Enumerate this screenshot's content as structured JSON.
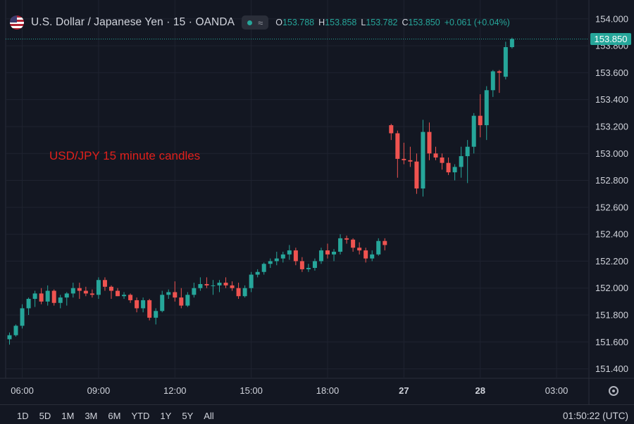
{
  "header": {
    "symbol_title": "U.S. Dollar / Japanese Yen · 15 · OANDA",
    "ohlc": [
      {
        "label": "O",
        "value": "153.788"
      },
      {
        "label": "H",
        "value": "153.858"
      },
      {
        "label": "L",
        "value": "153.782"
      },
      {
        "label": "C",
        "value": "153.850"
      }
    ],
    "change": "+0.061 (+0.04%)",
    "flag_icon": "us-jp-flag-icon",
    "status_icon": "market-open-dot-icon",
    "wave_icon": "wave-icon"
  },
  "annotation": "USD/JPY 15 minute candles",
  "price_badge": "153.850",
  "bottom": {
    "ranges": [
      "1D",
      "5D",
      "1M",
      "3M",
      "6M",
      "YTD",
      "1Y",
      "5Y",
      "All"
    ],
    "clock": "01:50:22 (UTC)"
  },
  "colors": {
    "up": "#26a69a",
    "down": "#ef5350",
    "background": "#131722",
    "annotation": "#e0201b"
  },
  "chart_data": {
    "type": "candlestick",
    "y_ticks": [
      "154.000",
      "153.800",
      "153.600",
      "153.400",
      "153.200",
      "153.000",
      "152.800",
      "152.600",
      "152.400",
      "152.200",
      "152.000",
      "151.800",
      "151.600",
      "151.400"
    ],
    "y_range": [
      151.33,
      154.14
    ],
    "x_ticks": [
      {
        "label": "06:00",
        "i": 2
      },
      {
        "label": "09:00",
        "i": 14
      },
      {
        "label": "12:00",
        "i": 26
      },
      {
        "label": "15:00",
        "i": 38
      },
      {
        "label": "18:00",
        "i": 50
      },
      {
        "label": "27",
        "i": 62
      },
      {
        "label": "28",
        "i": 74
      },
      {
        "label": "03:00",
        "i": 86
      }
    ],
    "last_price": 153.85,
    "candles": [
      [
        151.62,
        151.67,
        151.58,
        151.65
      ],
      [
        151.65,
        151.73,
        151.64,
        151.72
      ],
      [
        151.72,
        151.88,
        151.7,
        151.85
      ],
      [
        151.85,
        151.93,
        151.8,
        151.92
      ],
      [
        151.92,
        151.98,
        151.86,
        151.96
      ],
      [
        151.96,
        152.0,
        151.88,
        151.9
      ],
      [
        151.9,
        152.02,
        151.87,
        151.98
      ],
      [
        151.98,
        151.99,
        151.87,
        151.89
      ],
      [
        151.89,
        151.95,
        151.85,
        151.93
      ],
      [
        151.93,
        151.97,
        151.87,
        151.96
      ],
      [
        151.96,
        152.04,
        151.93,
        152.0
      ],
      [
        152.0,
        152.04,
        151.92,
        151.98
      ],
      [
        151.98,
        152.01,
        151.94,
        151.96
      ],
      [
        151.96,
        151.99,
        151.93,
        151.95
      ],
      [
        151.95,
        152.08,
        151.92,
        152.06
      ],
      [
        152.06,
        152.08,
        151.98,
        152.01
      ],
      [
        152.01,
        152.02,
        151.92,
        151.98
      ],
      [
        151.98,
        152.0,
        151.94,
        151.94
      ],
      [
        151.94,
        151.97,
        151.92,
        151.95
      ],
      [
        151.95,
        151.96,
        151.89,
        151.91
      ],
      [
        151.91,
        151.93,
        151.82,
        151.85
      ],
      [
        151.85,
        151.93,
        151.82,
        151.91
      ],
      [
        151.91,
        151.92,
        151.76,
        151.78
      ],
      [
        151.78,
        151.85,
        151.73,
        151.83
      ],
      [
        151.83,
        151.98,
        151.82,
        151.95
      ],
      [
        151.95,
        151.99,
        151.92,
        151.97
      ],
      [
        151.97,
        152.05,
        151.9,
        151.93
      ],
      [
        151.93,
        152.0,
        151.85,
        151.87
      ],
      [
        151.87,
        151.97,
        151.86,
        151.95
      ],
      [
        151.95,
        152.04,
        151.93,
        152.0
      ],
      [
        152.0,
        152.08,
        151.98,
        152.03
      ],
      [
        152.03,
        152.08,
        152.0,
        152.02
      ],
      [
        152.02,
        152.06,
        151.95,
        152.02
      ],
      [
        152.02,
        152.06,
        151.97,
        152.04
      ],
      [
        152.04,
        152.08,
        152.0,
        152.02
      ],
      [
        152.02,
        152.05,
        151.98,
        152.0
      ],
      [
        152.0,
        152.04,
        151.92,
        151.94
      ],
      [
        151.94,
        152.02,
        151.93,
        152.0
      ],
      [
        152.0,
        152.12,
        151.97,
        152.1
      ],
      [
        152.1,
        152.14,
        152.08,
        152.12
      ],
      [
        152.12,
        152.19,
        152.1,
        152.18
      ],
      [
        152.18,
        152.22,
        152.15,
        152.2
      ],
      [
        152.2,
        152.27,
        152.17,
        152.22
      ],
      [
        152.22,
        152.27,
        152.19,
        152.25
      ],
      [
        152.25,
        152.32,
        152.21,
        152.28
      ],
      [
        152.28,
        152.3,
        152.17,
        152.2
      ],
      [
        152.2,
        152.23,
        152.12,
        152.14
      ],
      [
        152.14,
        152.18,
        152.12,
        152.15
      ],
      [
        152.15,
        152.22,
        152.13,
        152.2
      ],
      [
        152.2,
        152.3,
        152.18,
        152.28
      ],
      [
        152.28,
        152.33,
        152.22,
        152.25
      ],
      [
        152.25,
        152.29,
        152.2,
        152.27
      ],
      [
        152.27,
        152.4,
        152.25,
        152.37
      ],
      [
        152.37,
        152.39,
        152.33,
        152.36
      ],
      [
        152.36,
        152.37,
        152.27,
        152.3
      ],
      [
        152.3,
        152.34,
        152.25,
        152.28
      ],
      [
        152.28,
        152.3,
        152.19,
        152.22
      ],
      [
        152.22,
        152.28,
        152.2,
        152.25
      ],
      [
        152.25,
        152.37,
        152.24,
        152.35
      ],
      [
        152.35,
        152.37,
        152.28,
        152.32
      ],
      [
        153.21,
        153.22,
        153.1,
        153.15
      ],
      [
        153.15,
        153.17,
        152.82,
        152.96
      ],
      [
        152.96,
        153.08,
        152.92,
        152.95
      ],
      [
        152.95,
        153.05,
        152.9,
        152.94
      ],
      [
        152.94,
        153.0,
        152.7,
        152.74
      ],
      [
        152.74,
        153.25,
        152.68,
        153.16
      ],
      [
        153.16,
        153.23,
        152.95,
        153.0
      ],
      [
        153.0,
        153.05,
        152.95,
        152.97
      ],
      [
        152.97,
        153.0,
        152.88,
        152.93
      ],
      [
        152.93,
        152.97,
        152.84,
        152.86
      ],
      [
        152.86,
        152.92,
        152.8,
        152.9
      ],
      [
        152.9,
        153.05,
        152.82,
        152.98
      ],
      [
        152.98,
        153.1,
        152.78,
        153.05
      ],
      [
        153.05,
        153.3,
        153.0,
        153.28
      ],
      [
        153.28,
        153.44,
        153.12,
        153.21
      ],
      [
        153.21,
        153.5,
        153.1,
        153.47
      ],
      [
        153.47,
        153.62,
        153.42,
        153.61
      ],
      [
        153.61,
        153.62,
        153.45,
        153.6
      ],
      [
        153.57,
        153.83,
        153.55,
        153.79
      ],
      [
        153.79,
        153.86,
        153.78,
        153.85
      ]
    ]
  }
}
